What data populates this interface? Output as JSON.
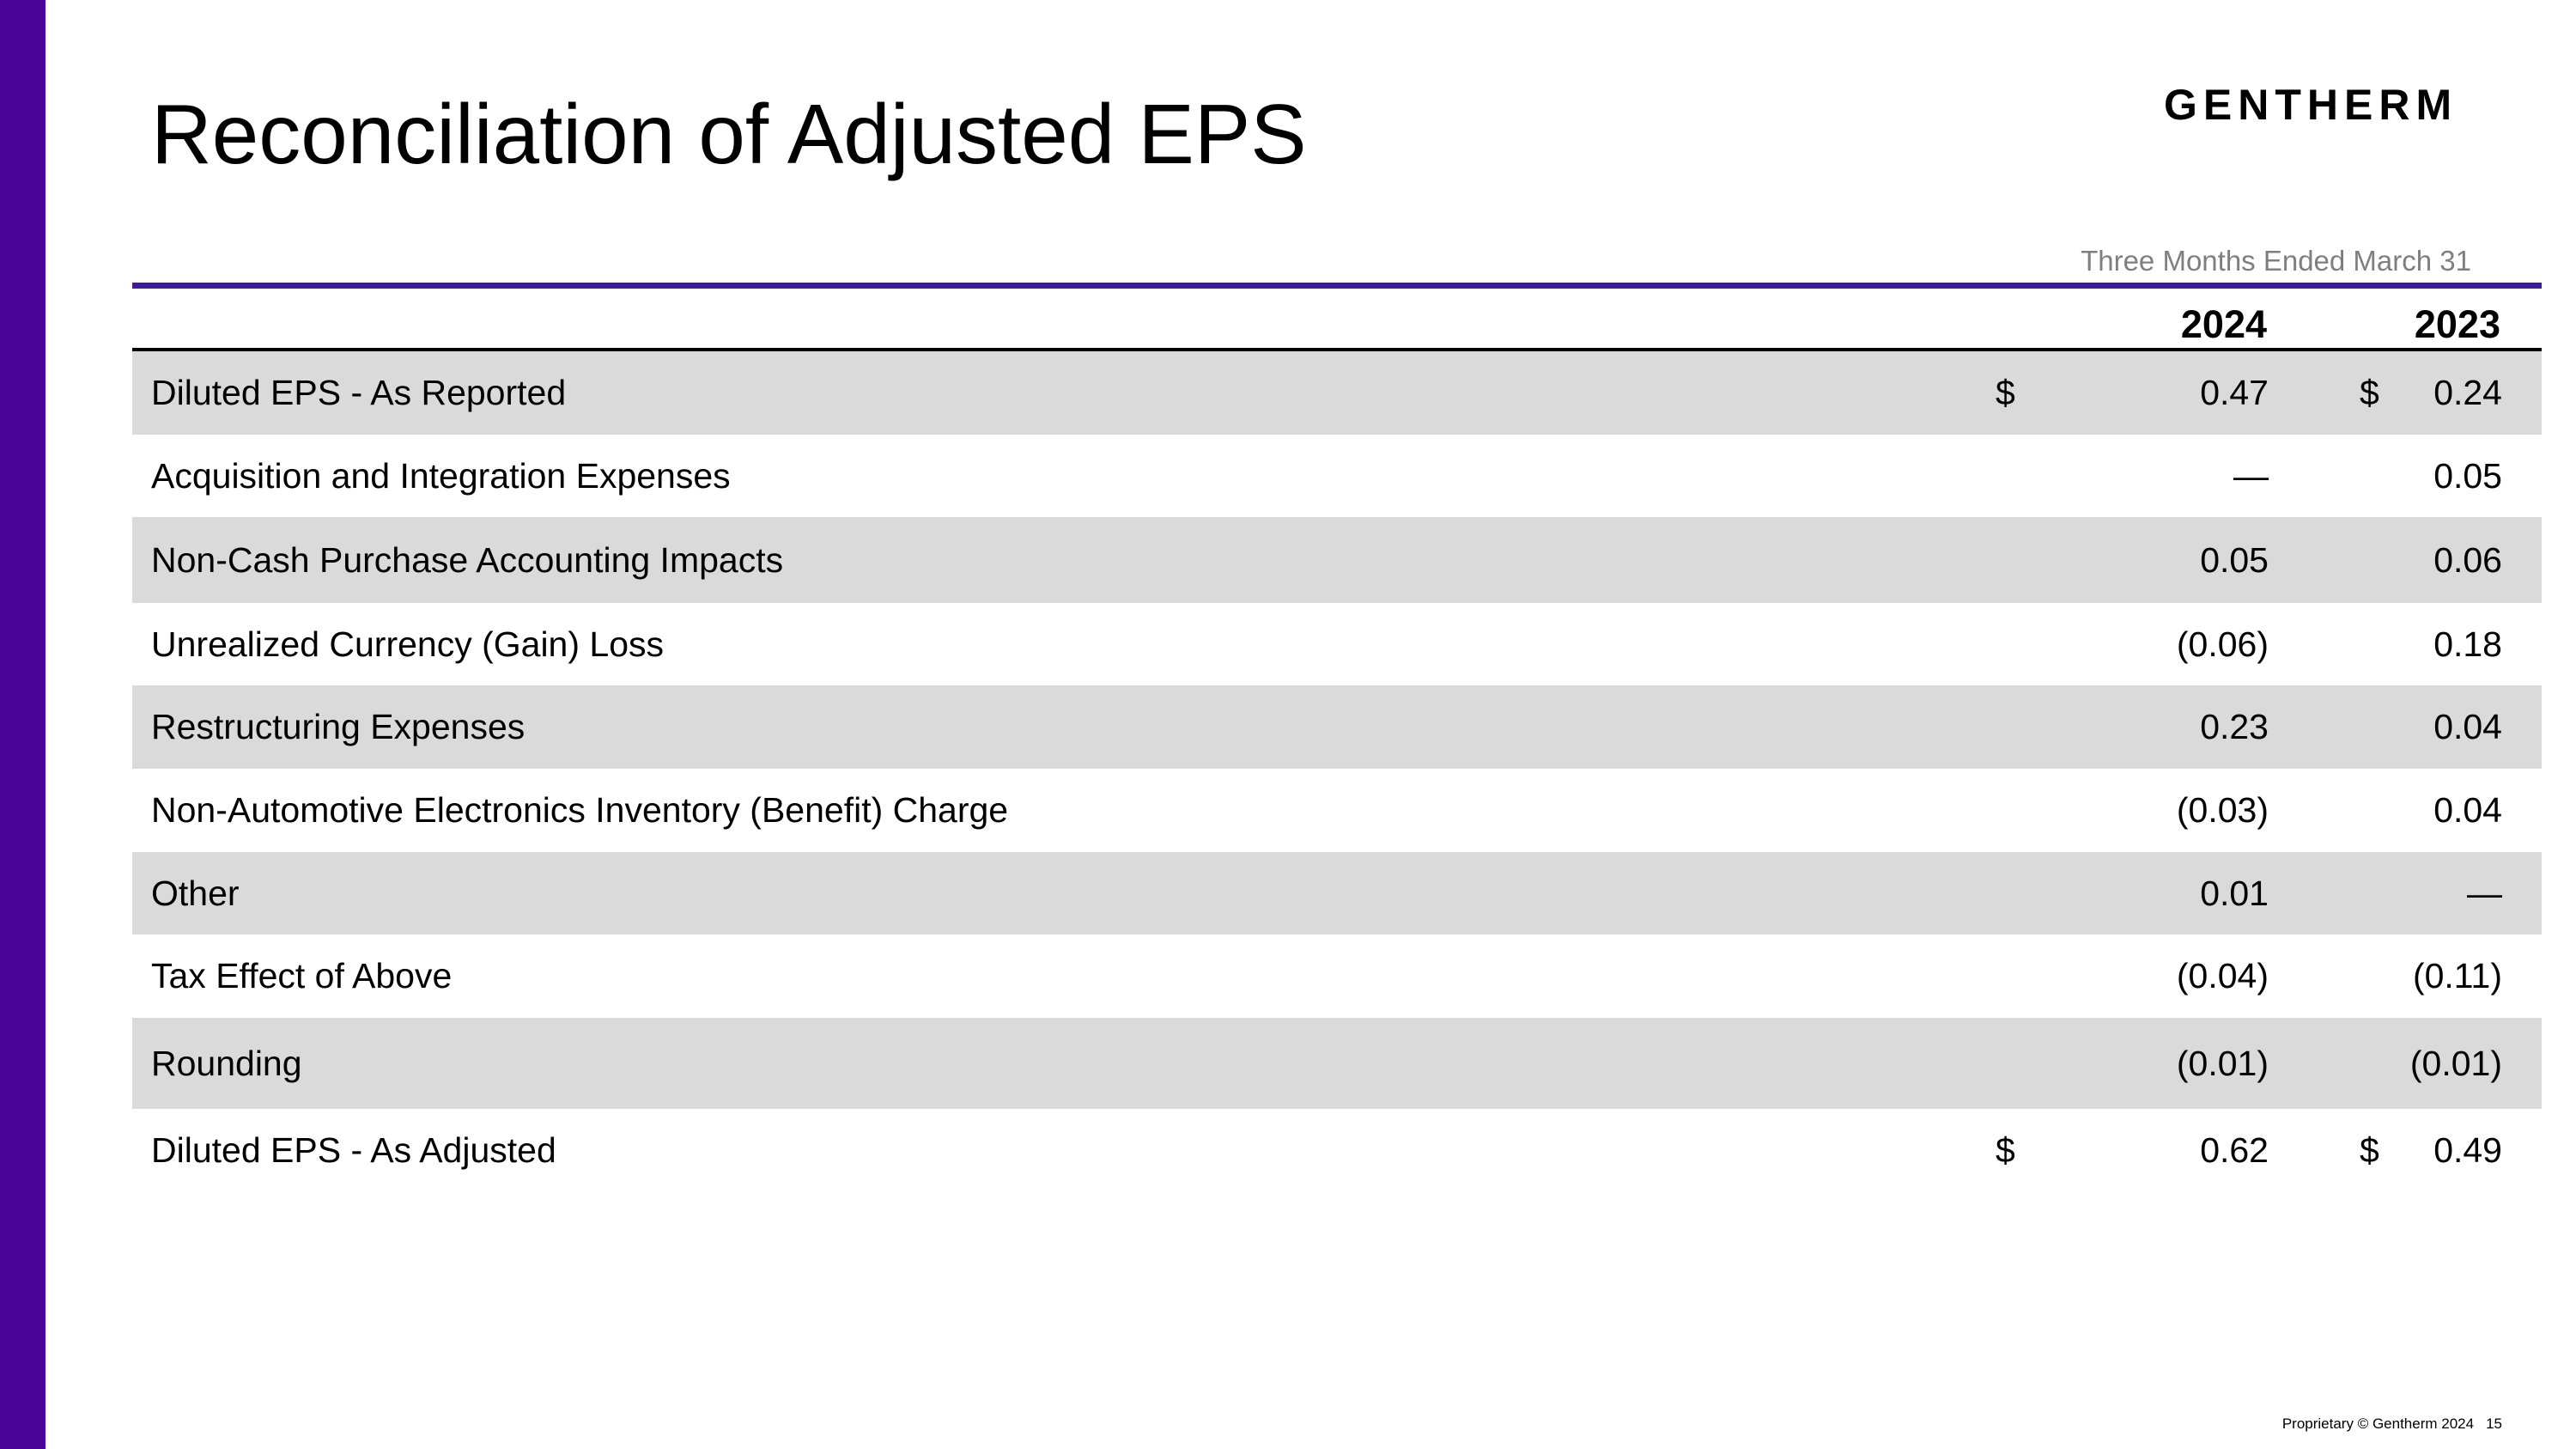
{
  "title": "Reconciliation of Adjusted EPS",
  "logo_text": "GENTHERM",
  "brand_color": "#4a0698",
  "table": {
    "period_label": "Three Months Ended March 31",
    "years": [
      "2024",
      "2023"
    ],
    "rows": [
      {
        "label": "Diluted EPS - As Reported",
        "cur1": "$",
        "v2024": "0.47",
        "cur2": "$",
        "v2023": "0.24"
      },
      {
        "label": "Acquisition and Integration Expenses",
        "cur1": "",
        "v2024": "—",
        "cur2": "",
        "v2023": "0.05"
      },
      {
        "label": "Non-Cash Purchase Accounting Impacts",
        "cur1": "",
        "v2024": "0.05",
        "cur2": "",
        "v2023": "0.06"
      },
      {
        "label": "Unrealized Currency (Gain) Loss",
        "cur1": "",
        "v2024": "(0.06)",
        "cur2": "",
        "v2023": "0.18"
      },
      {
        "label": "Restructuring Expenses",
        "cur1": "",
        "v2024": "0.23",
        "cur2": "",
        "v2023": "0.04"
      },
      {
        "label": "Non-Automotive Electronics Inventory (Benefit) Charge",
        "cur1": "",
        "v2024": "(0.03)",
        "cur2": "",
        "v2023": "0.04"
      },
      {
        "label": "Other",
        "cur1": "",
        "v2024": "0.01",
        "cur2": "",
        "v2023": "—"
      },
      {
        "label": "Tax Effect of Above",
        "cur1": "",
        "v2024": "(0.04)",
        "cur2": "",
        "v2023": "(0.11)"
      },
      {
        "label": "Rounding",
        "cur1": "",
        "v2024": "(0.01)",
        "cur2": "",
        "v2023": "(0.01)"
      },
      {
        "label": "Diluted EPS - As Adjusted",
        "cur1": "$",
        "v2024": "0.62",
        "cur2": "$",
        "v2023": "0.49"
      }
    ]
  },
  "footer": {
    "text": "Proprietary © Gentherm 2024",
    "page": "15"
  }
}
